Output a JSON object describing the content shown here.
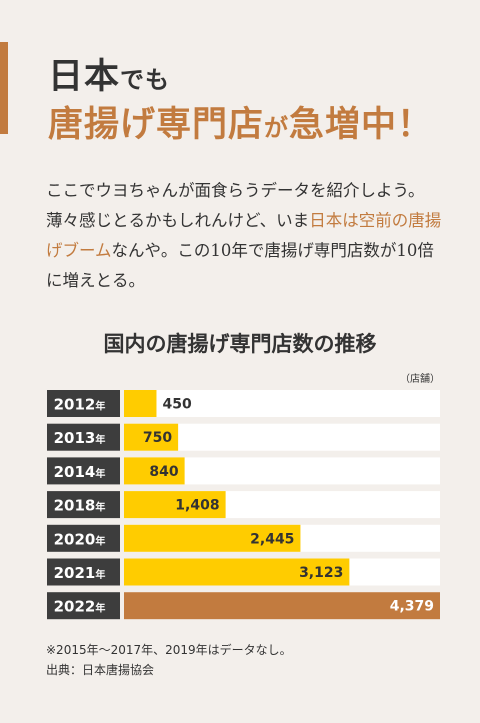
{
  "heading": {
    "line1_main": "日本",
    "line1_small": "でも",
    "line2_main": "唐揚げ専門店",
    "line2_small": "が",
    "line2_end": "急増中！"
  },
  "lead": {
    "part1": "ここでウヨちゃんが面食らうデータを紹介しよう。薄々感じとるかもしれんけど、いま",
    "highlight": "日本は空前の唐揚げブーム",
    "part2": "なんや。この10年で唐揚げ専門店数が10倍に増えとる。"
  },
  "colors": {
    "accent": "#c27b3f",
    "bar": "#ffcc00",
    "label_bg": "#3d3d3d",
    "track": "#ffffff"
  },
  "chart_data": {
    "type": "bar",
    "orientation": "horizontal",
    "title": "国内の唐揚げ専門店数の推移",
    "unit": "（店舗）",
    "year_suffix": "年",
    "categories": [
      "2012",
      "2013",
      "2014",
      "2018",
      "2020",
      "2021",
      "2022"
    ],
    "values": [
      450,
      750,
      840,
      1408,
      2445,
      3123,
      4379
    ],
    "value_labels": [
      "450",
      "750",
      "840",
      "1,408",
      "2,445",
      "3,123",
      "4,379"
    ],
    "highlight_category": "2022",
    "xlim": [
      0,
      4379
    ]
  },
  "note": "※2015年〜2017年、2019年はデータなし。",
  "source": "出典：日本唐揚協会"
}
